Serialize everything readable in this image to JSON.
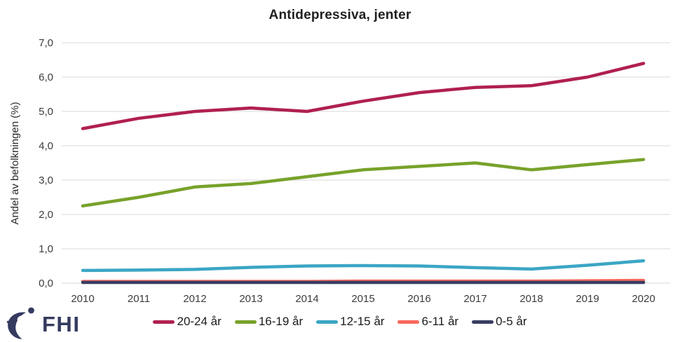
{
  "chart_data": {
    "type": "line",
    "title": "Antidepressiva, jenter",
    "xlabel": "",
    "ylabel": "Andel av befolkningen (%)",
    "x": [
      "2010",
      "2011",
      "2012",
      "2013",
      "2014",
      "2015",
      "2016",
      "2017",
      "2018",
      "2019",
      "2020"
    ],
    "ylim": [
      0,
      7
    ],
    "ytick_step": 1,
    "ytick_labels": [
      "0,0",
      "1,0",
      "2,0",
      "3,0",
      "4,0",
      "5,0",
      "6,0",
      "7,0"
    ],
    "grid": true,
    "legend_position": "bottom",
    "series": [
      {
        "name": "20-24 år",
        "color": "#b0204e",
        "values": [
          4.5,
          4.8,
          5.0,
          5.1,
          5.0,
          5.3,
          5.55,
          5.7,
          5.75,
          6.0,
          6.4
        ]
      },
      {
        "name": "16-19 år",
        "color": "#78a22b",
        "values": [
          2.25,
          2.5,
          2.8,
          2.9,
          3.1,
          3.3,
          3.4,
          3.5,
          3.3,
          3.45,
          3.6
        ]
      },
      {
        "name": "12-15 år",
        "color": "#3ba6c4",
        "values": [
          0.37,
          0.38,
          0.4,
          0.46,
          0.5,
          0.51,
          0.5,
          0.45,
          0.41,
          0.52,
          0.65
        ]
      },
      {
        "name": "6-11 år",
        "color": "#f9685c",
        "values": [
          0.05,
          0.05,
          0.05,
          0.05,
          0.05,
          0.06,
          0.06,
          0.06,
          0.06,
          0.07,
          0.08
        ]
      },
      {
        "name": "0-5 år",
        "color": "#383d62",
        "values": [
          0.02,
          0.02,
          0.02,
          0.02,
          0.02,
          0.02,
          0.02,
          0.02,
          0.02,
          0.02,
          0.02
        ]
      }
    ]
  },
  "colors": {
    "gridline": "#d9d9d9",
    "tick_text": "#3c3c3c",
    "title_text": "#1f1f1f",
    "logo_navy": "#353a5f"
  },
  "footer": {
    "logo_text": "FHI"
  }
}
